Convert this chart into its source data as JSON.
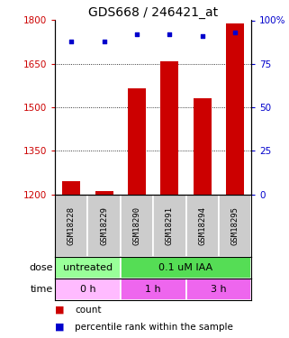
{
  "title": "GDS668 / 246421_at",
  "samples": [
    "GSM18228",
    "GSM18229",
    "GSM18290",
    "GSM18291",
    "GSM18294",
    "GSM18295"
  ],
  "bar_values": [
    1245,
    1210,
    1565,
    1660,
    1530,
    1790
  ],
  "scatter_values": [
    88,
    88,
    92,
    92,
    91,
    93
  ],
  "ylim_left": [
    1200,
    1800
  ],
  "ylim_right": [
    0,
    100
  ],
  "yticks_left": [
    1200,
    1350,
    1500,
    1650,
    1800
  ],
  "yticks_right": [
    0,
    25,
    50,
    75,
    100
  ],
  "bar_color": "#cc0000",
  "scatter_color": "#0000cc",
  "bar_bottom": 1200,
  "dose_labels": [
    {
      "label": "untreated",
      "start": 0,
      "end": 2,
      "color": "#99ff99"
    },
    {
      "label": "0.1 uM IAA",
      "start": 2,
      "end": 6,
      "color": "#55dd55"
    }
  ],
  "time_labels": [
    {
      "label": "0 h",
      "start": 0,
      "end": 2,
      "color": "#ffbbff"
    },
    {
      "label": "1 h",
      "start": 2,
      "end": 4,
      "color": "#ee66ee"
    },
    {
      "label": "3 h",
      "start": 4,
      "end": 6,
      "color": "#ee66ee"
    }
  ],
  "dose_row_label": "dose",
  "time_row_label": "time",
  "legend_count_label": "count",
  "legend_pct_label": "percentile rank within the sample",
  "sample_bg_color": "#cccccc",
  "title_fontsize": 10,
  "tick_fontsize": 7.5,
  "sample_fontsize": 6.5,
  "row_label_fontsize": 8,
  "legend_fontsize": 7.5
}
